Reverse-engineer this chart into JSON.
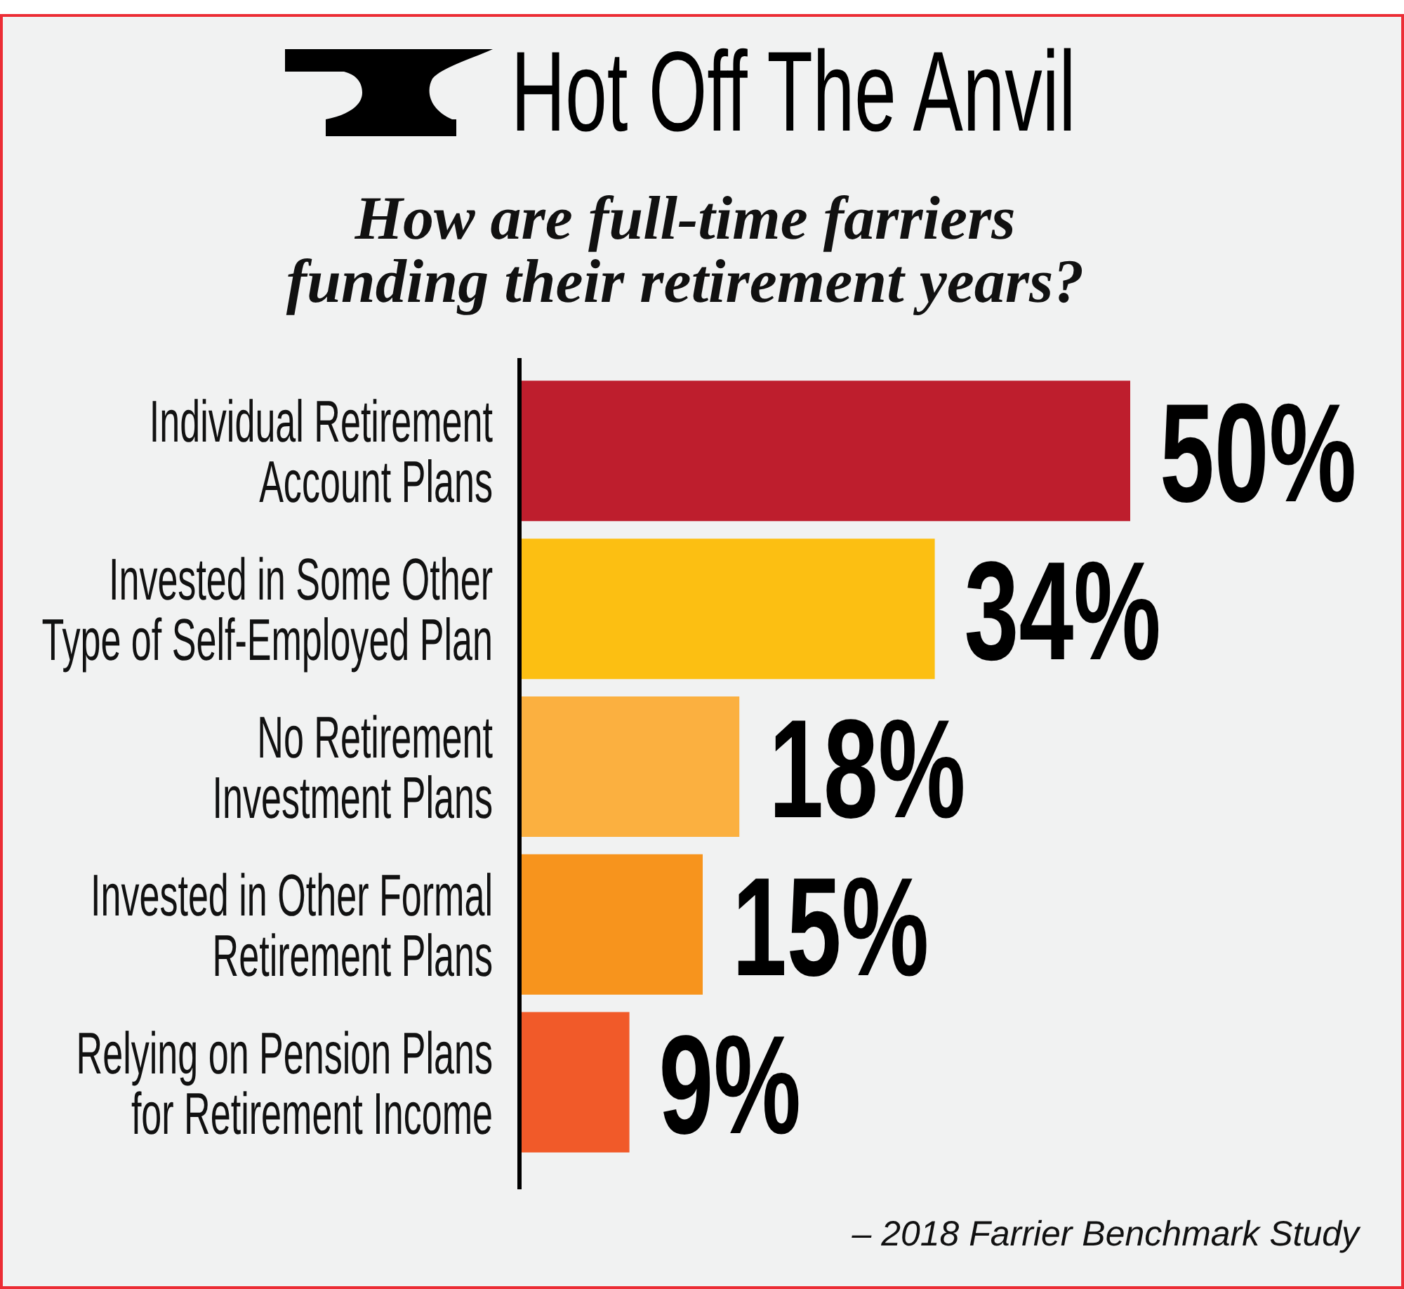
{
  "chart_data": {
    "type": "bar",
    "orientation": "horizontal",
    "title": "Hot Off The Anvil",
    "subtitle": "How are full-time farriers\nfunding their retirement years?",
    "categories": [
      "Individual Retirement\nAccount Plans",
      "Invested in Some Other\nType of Self-Employed Plan",
      "No Retirement\nInvestment Plans",
      "Invested in Other Formal\nRetirement Plans",
      "Relying on Pension Plans\nfor Retirement Income"
    ],
    "values": [
      50,
      34,
      18,
      15,
      9
    ],
    "colors": [
      "#be1e2d",
      "#fcbf12",
      "#fbb040",
      "#f7941d",
      "#f15a29"
    ],
    "value_labels": [
      "50%",
      "34%",
      "18%",
      "15%",
      "9%"
    ],
    "tick_labels": "y",
    "annotations": [
      "– 2018 Farrier Benchmark Study"
    ]
  }
}
